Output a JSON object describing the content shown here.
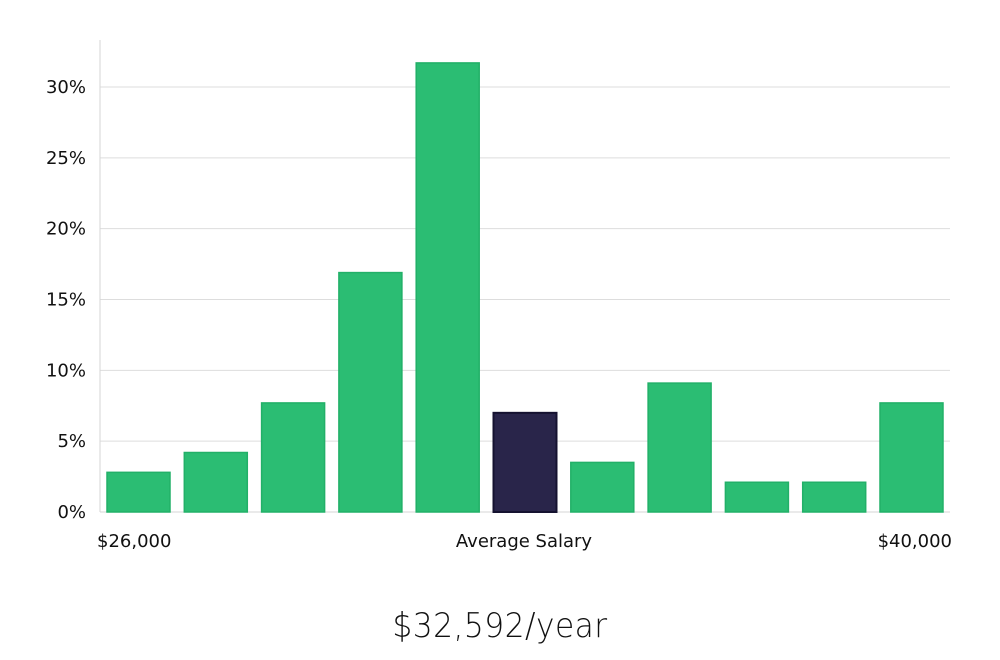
{
  "chart_data": {
    "type": "bar",
    "title": "",
    "xlabel": "",
    "ylabel": "",
    "ylim": [
      0,
      0.33
    ],
    "y_ticks": [
      {
        "value": 0,
        "label": "0%"
      },
      {
        "value": 0.05,
        "label": "5%"
      },
      {
        "value": 0.1,
        "label": "10%"
      },
      {
        "value": 0.15,
        "label": "15%"
      },
      {
        "value": 0.2,
        "label": "20%"
      },
      {
        "value": 0.25,
        "label": "25%"
      },
      {
        "value": 0.3,
        "label": "30%"
      }
    ],
    "x_axis_labels": {
      "left": "$26,000",
      "center": "Average Salary",
      "right": "$40,000"
    },
    "values": [
      0.028,
      0.042,
      0.077,
      0.169,
      0.317,
      0.07,
      0.035,
      0.091,
      0.021,
      0.021,
      0.077
    ],
    "highlight_index": 5,
    "grid": true,
    "colors": {
      "bar": "#2bbd73",
      "bar_stroke": "#22b068",
      "highlight": "#29254a",
      "highlight_stroke": "#151230",
      "grid": "#dddddd",
      "axis": "#d5d5d5"
    }
  },
  "summary": {
    "average_salary": "$32,592/year"
  }
}
